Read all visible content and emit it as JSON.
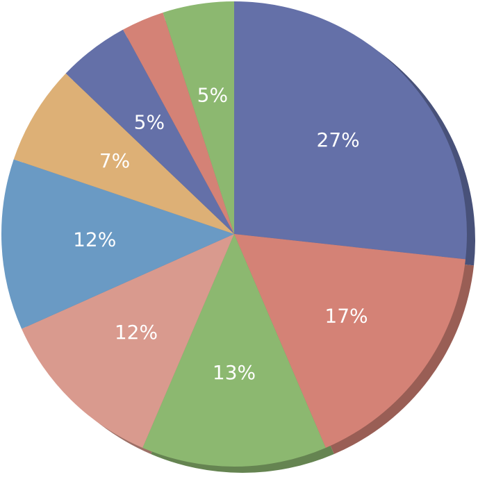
{
  "chart_data": {
    "type": "pie",
    "categories": [
      null,
      null,
      null,
      null,
      null,
      null,
      null,
      null,
      null
    ],
    "values": [
      27,
      17,
      13,
      12,
      12,
      7,
      5,
      3,
      5
    ],
    "value_labels": [
      "27%",
      "17%",
      "13%",
      "12%",
      "12%",
      "7%",
      "5%",
      null,
      "5%"
    ],
    "colors": [
      "#6470a8",
      "#d48276",
      "#8cb870",
      "#d99a8e",
      "#6a9ac4",
      "#ddb076",
      "#6470a8",
      "#d48276",
      "#8cb870"
    ]
  }
}
